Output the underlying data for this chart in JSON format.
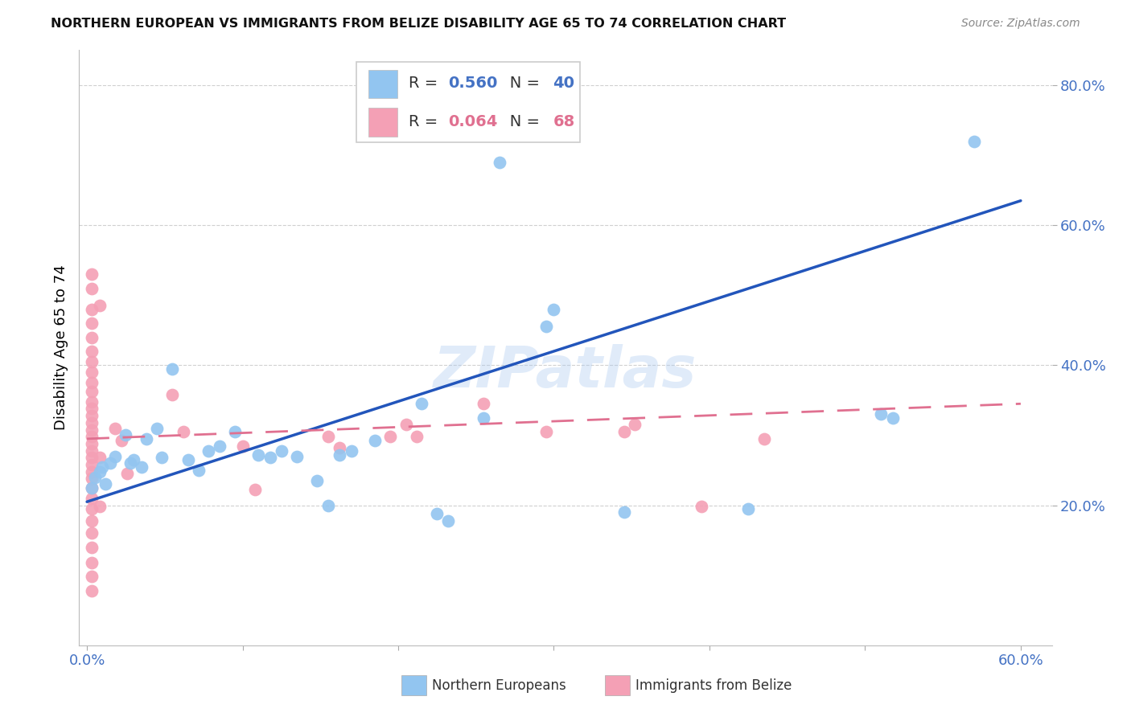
{
  "title": "NORTHERN EUROPEAN VS IMMIGRANTS FROM BELIZE DISABILITY AGE 65 TO 74 CORRELATION CHART",
  "source": "Source: ZipAtlas.com",
  "ylabel": "Disability Age 65 to 74",
  "xlim": [
    -0.005,
    0.62
  ],
  "ylim": [
    0.0,
    0.85
  ],
  "ytick_vals": [
    0.2,
    0.4,
    0.6,
    0.8
  ],
  "ytick_labels": [
    "20.0%",
    "40.0%",
    "60.0%",
    "80.0%"
  ],
  "xtick_vals": [
    0.0,
    0.1,
    0.2,
    0.3,
    0.4,
    0.5,
    0.6
  ],
  "xtick_labels": [
    "0.0%",
    "",
    "",
    "",
    "",
    "",
    "60.0%"
  ],
  "legend_blue_r": "0.560",
  "legend_blue_n": "40",
  "legend_pink_r": "0.064",
  "legend_pink_n": "68",
  "blue_color": "#92C5F0",
  "pink_color": "#F4A0B5",
  "blue_line_color": "#2255BB",
  "pink_line_color": "#E07090",
  "axis_label_color": "#4472C4",
  "grid_color": "#D0D0D0",
  "watermark_text": "ZIPatlas",
  "watermark_color": "#A8C8F0",
  "blue_points": [
    [
      0.003,
      0.225
    ],
    [
      0.005,
      0.24
    ],
    [
      0.008,
      0.248
    ],
    [
      0.01,
      0.255
    ],
    [
      0.012,
      0.23
    ],
    [
      0.015,
      0.26
    ],
    [
      0.018,
      0.27
    ],
    [
      0.025,
      0.3
    ],
    [
      0.028,
      0.26
    ],
    [
      0.03,
      0.265
    ],
    [
      0.035,
      0.255
    ],
    [
      0.038,
      0.295
    ],
    [
      0.045,
      0.31
    ],
    [
      0.048,
      0.268
    ],
    [
      0.055,
      0.395
    ],
    [
      0.065,
      0.265
    ],
    [
      0.072,
      0.25
    ],
    [
      0.078,
      0.278
    ],
    [
      0.085,
      0.285
    ],
    [
      0.095,
      0.305
    ],
    [
      0.11,
      0.272
    ],
    [
      0.118,
      0.268
    ],
    [
      0.125,
      0.278
    ],
    [
      0.135,
      0.27
    ],
    [
      0.148,
      0.235
    ],
    [
      0.155,
      0.2
    ],
    [
      0.162,
      0.272
    ],
    [
      0.17,
      0.278
    ],
    [
      0.185,
      0.292
    ],
    [
      0.215,
      0.345
    ],
    [
      0.225,
      0.188
    ],
    [
      0.232,
      0.178
    ],
    [
      0.255,
      0.325
    ],
    [
      0.265,
      0.69
    ],
    [
      0.295,
      0.455
    ],
    [
      0.3,
      0.48
    ],
    [
      0.345,
      0.19
    ],
    [
      0.425,
      0.195
    ],
    [
      0.51,
      0.33
    ],
    [
      0.518,
      0.325
    ],
    [
      0.57,
      0.72
    ]
  ],
  "pink_points": [
    [
      0.003,
      0.53
    ],
    [
      0.003,
      0.51
    ],
    [
      0.003,
      0.48
    ],
    [
      0.003,
      0.46
    ],
    [
      0.003,
      0.44
    ],
    [
      0.003,
      0.42
    ],
    [
      0.003,
      0.405
    ],
    [
      0.003,
      0.39
    ],
    [
      0.003,
      0.375
    ],
    [
      0.003,
      0.362
    ],
    [
      0.003,
      0.348
    ],
    [
      0.003,
      0.338
    ],
    [
      0.003,
      0.328
    ],
    [
      0.003,
      0.318
    ],
    [
      0.003,
      0.308
    ],
    [
      0.003,
      0.298
    ],
    [
      0.003,
      0.288
    ],
    [
      0.003,
      0.278
    ],
    [
      0.003,
      0.268
    ],
    [
      0.003,
      0.258
    ],
    [
      0.003,
      0.248
    ],
    [
      0.003,
      0.238
    ],
    [
      0.003,
      0.225
    ],
    [
      0.003,
      0.21
    ],
    [
      0.003,
      0.195
    ],
    [
      0.003,
      0.178
    ],
    [
      0.003,
      0.16
    ],
    [
      0.003,
      0.14
    ],
    [
      0.003,
      0.118
    ],
    [
      0.003,
      0.098
    ],
    [
      0.003,
      0.078
    ],
    [
      0.008,
      0.485
    ],
    [
      0.008,
      0.268
    ],
    [
      0.008,
      0.198
    ],
    [
      0.018,
      0.31
    ],
    [
      0.022,
      0.292
    ],
    [
      0.026,
      0.245
    ],
    [
      0.055,
      0.358
    ],
    [
      0.062,
      0.305
    ],
    [
      0.1,
      0.285
    ],
    [
      0.108,
      0.222
    ],
    [
      0.155,
      0.298
    ],
    [
      0.162,
      0.282
    ],
    [
      0.195,
      0.298
    ],
    [
      0.205,
      0.315
    ],
    [
      0.212,
      0.298
    ],
    [
      0.255,
      0.345
    ],
    [
      0.295,
      0.305
    ],
    [
      0.345,
      0.305
    ],
    [
      0.352,
      0.315
    ],
    [
      0.395,
      0.198
    ],
    [
      0.435,
      0.295
    ]
  ],
  "blue_line_x": [
    0.0,
    0.6
  ],
  "blue_line_y": [
    0.205,
    0.635
  ],
  "pink_line_x": [
    0.0,
    0.6
  ],
  "pink_line_y": [
    0.295,
    0.345
  ]
}
